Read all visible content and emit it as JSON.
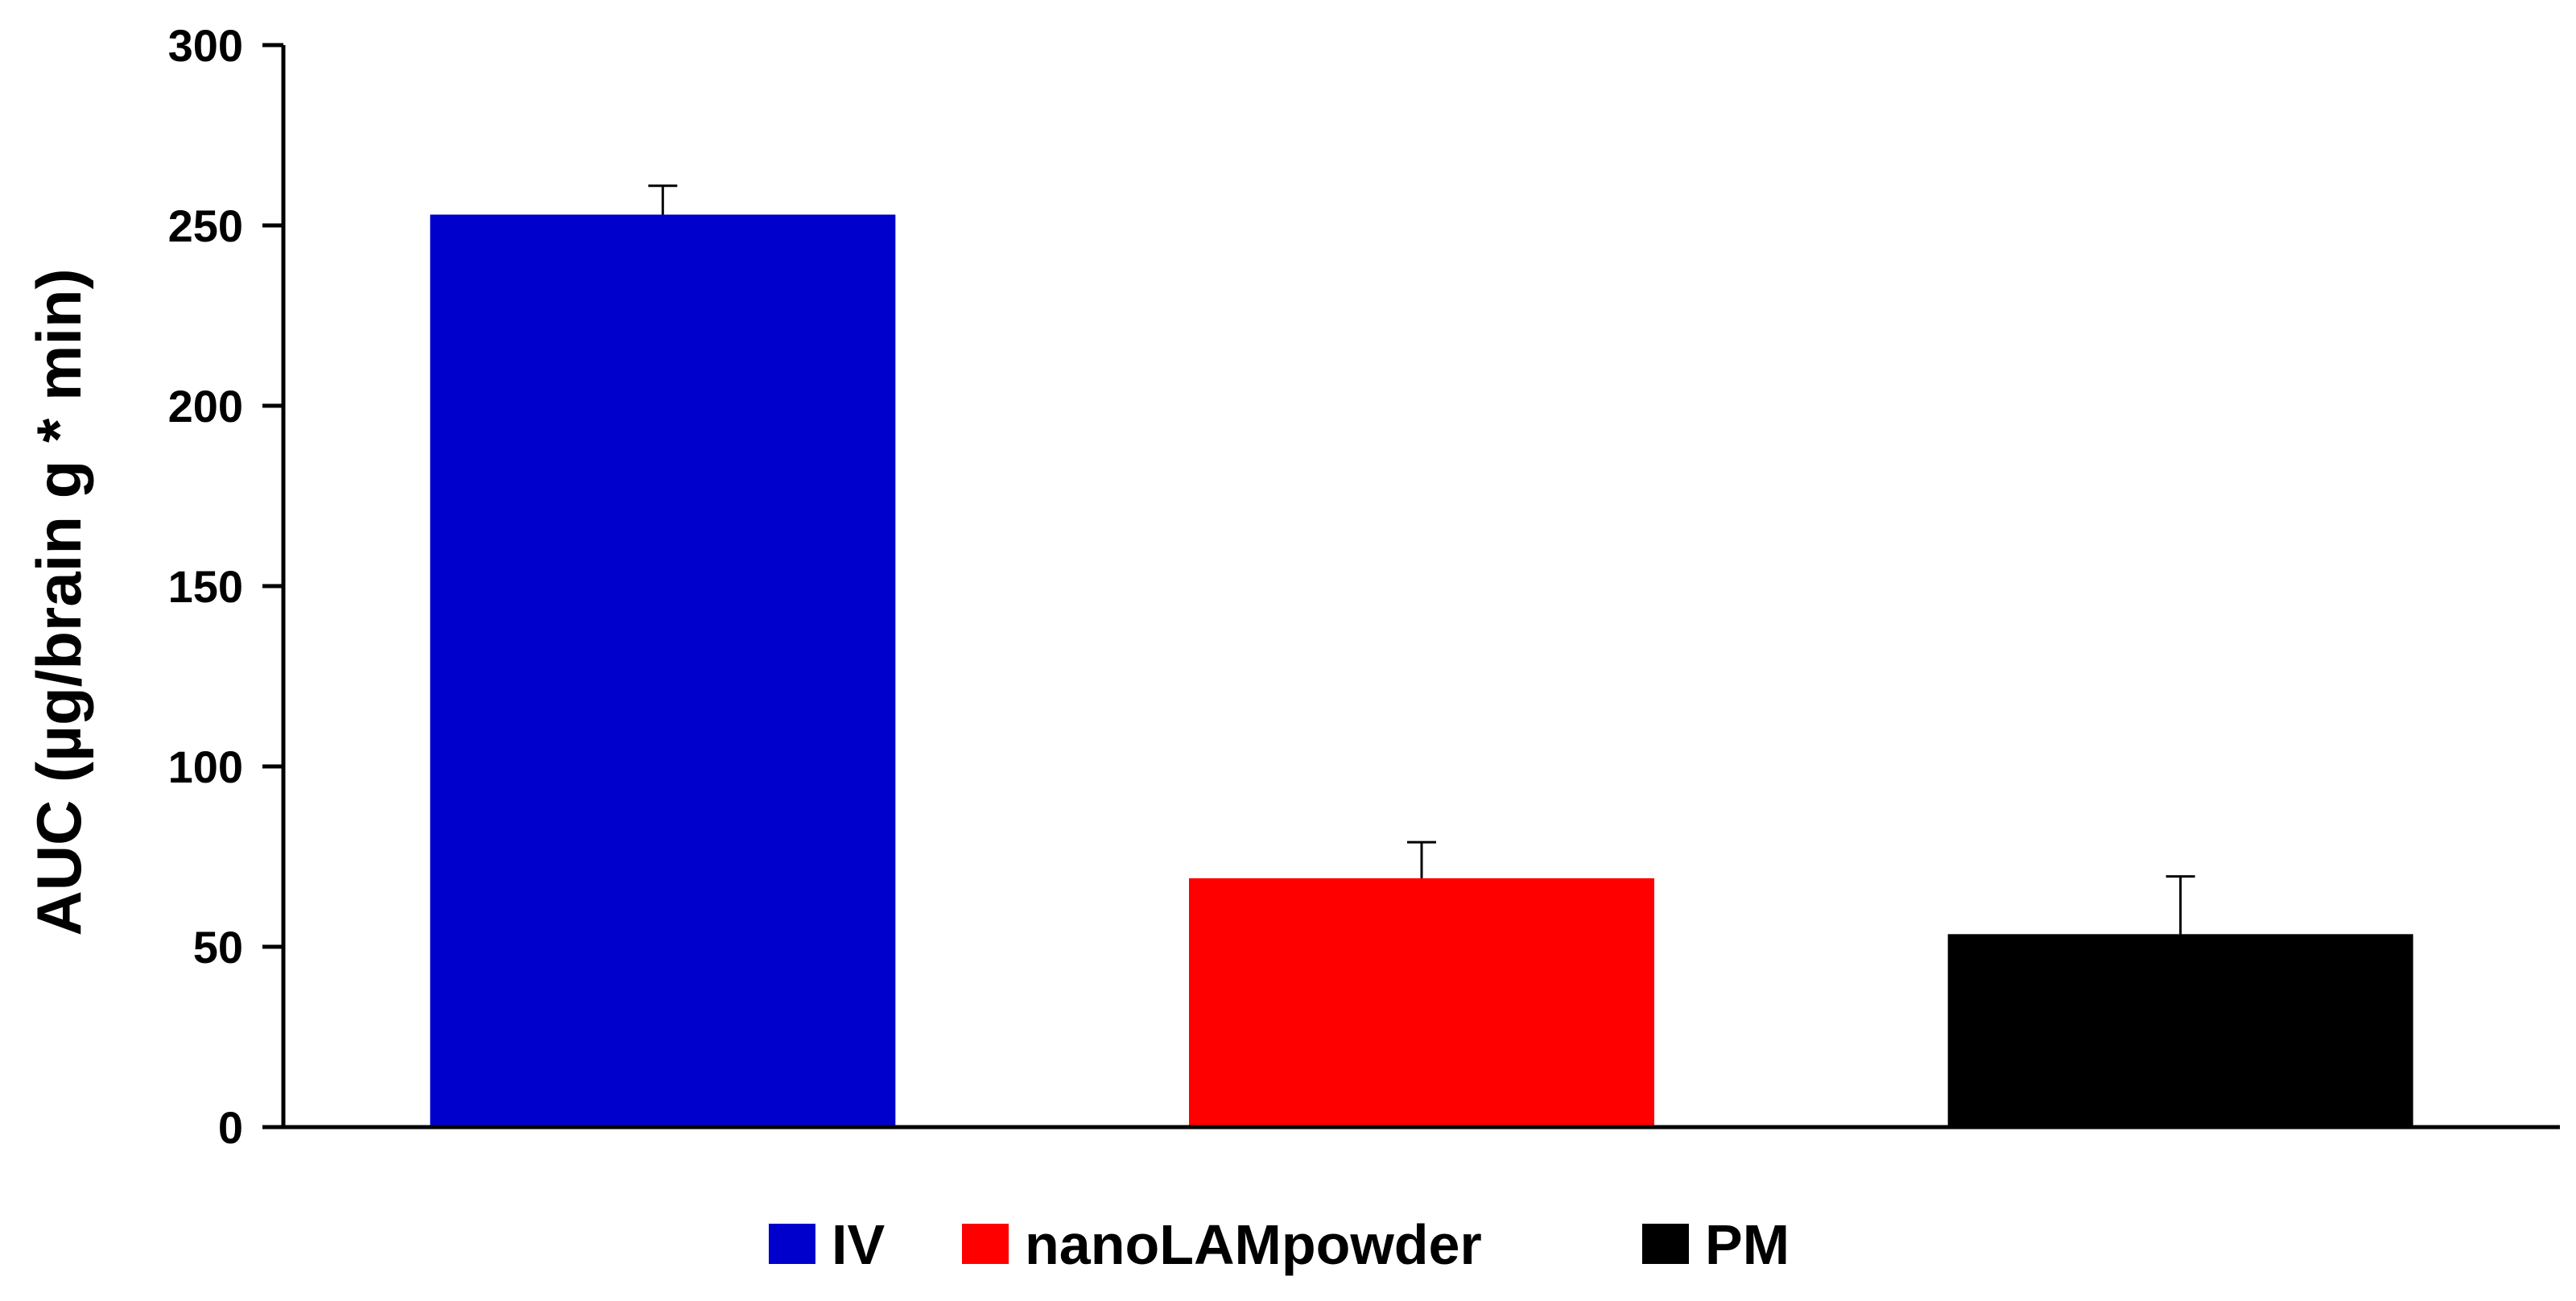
{
  "chart_data": {
    "type": "bar",
    "categories": [
      "IV",
      "nanoLAMpowder",
      "PM"
    ],
    "values": [
      253,
      69,
      53.5
    ],
    "error_bars": [
      8,
      10,
      16
    ],
    "colors": [
      "#0000CC",
      "#FF0000",
      "#000000"
    ],
    "ylabel": "AUC (µg/brain g * min)",
    "xlabel": "",
    "ylim": [
      0,
      300
    ],
    "yticks": [
      "0",
      "50",
      "100",
      "150",
      "200",
      "250",
      "300"
    ],
    "grid": false,
    "legend": {
      "position": "bottom-center",
      "entries": [
        "IV",
        "nanoLAMpowder",
        "PM"
      ]
    }
  }
}
